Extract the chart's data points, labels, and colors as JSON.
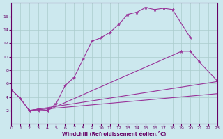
{
  "xlabel": "Windchill (Refroidissement éolien,°C)",
  "background_color": "#cce8ee",
  "line_color": "#993399",
  "grid_color": "#aacccc",
  "xlim": [
    0,
    23
  ],
  "ylim": [
    0,
    18
  ],
  "xticks": [
    0,
    1,
    2,
    3,
    4,
    5,
    6,
    7,
    8,
    9,
    10,
    11,
    12,
    13,
    14,
    15,
    16,
    17,
    18,
    19,
    20,
    21,
    22,
    23
  ],
  "yticks": [
    2,
    4,
    6,
    8,
    10,
    12,
    14,
    16
  ],
  "curve1_x": [
    0,
    1,
    2,
    3,
    4,
    5,
    6,
    7,
    8,
    9,
    10,
    11,
    12,
    13,
    14,
    15,
    16,
    17,
    18,
    20
  ],
  "curve1_y": [
    5.1,
    3.8,
    2.0,
    2.0,
    2.0,
    3.0,
    5.7,
    6.9,
    9.6,
    12.3,
    12.8,
    13.6,
    14.8,
    16.3,
    16.6,
    17.3,
    17.0,
    17.2,
    17.0,
    12.8
  ],
  "curve2_x": [
    0,
    1,
    2,
    3,
    4,
    19,
    20,
    21,
    23
  ],
  "curve2_y": [
    5.1,
    3.8,
    2.0,
    2.2,
    2.0,
    10.8,
    10.8,
    9.2,
    6.4
  ],
  "curve3_x": [
    2,
    23
  ],
  "curve3_y": [
    2.0,
    6.3
  ],
  "curve4_x": [
    2,
    23
  ],
  "curve4_y": [
    2.0,
    4.5
  ]
}
